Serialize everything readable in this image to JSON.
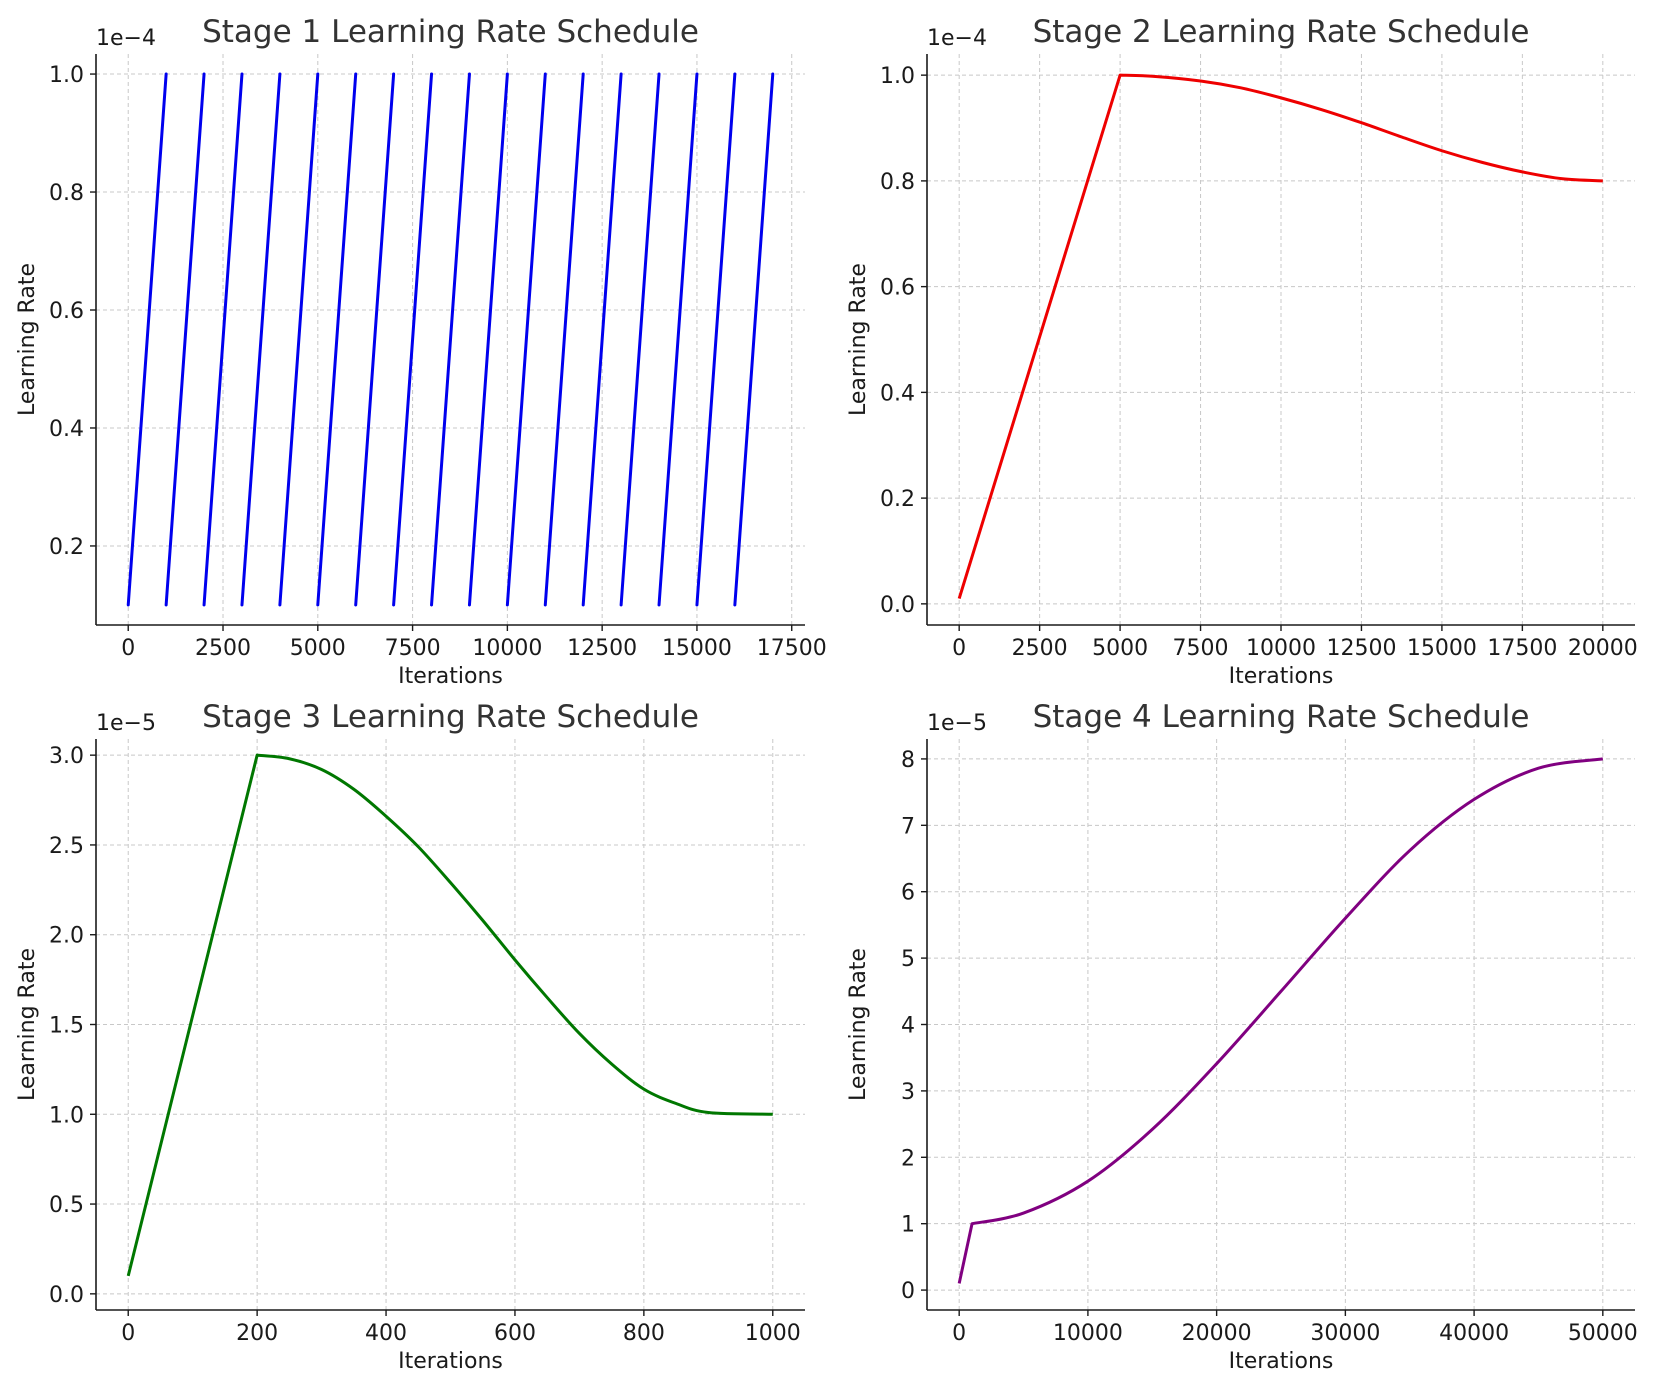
{
  "chart_data": [
    {
      "type": "line",
      "title": "Stage 1 Learning Rate Schedule",
      "xlabel": "Iterations",
      "ylabel": "Learning Rate",
      "scale_label": "1e−4",
      "color": "#0000ee",
      "grid": true,
      "xlim": [
        -850,
        17850
      ],
      "ylim": [
        0.066,
        1.034
      ],
      "xticks": [
        0,
        2500,
        5000,
        7500,
        10000,
        12500,
        15000,
        17500
      ],
      "xtick_labels": [
        "0",
        "2500",
        "5000",
        "7500",
        "10000",
        "12500",
        "15000",
        "17500"
      ],
      "yticks": [
        0.2,
        0.4,
        0.6,
        0.8,
        1.0
      ],
      "ytick_labels": [
        "0.2",
        "0.4",
        "0.6",
        "0.8",
        "1.0"
      ],
      "series": [
        {
          "segments": [
            [
              [
                0,
                0.1
              ],
              [
                1000,
                1.0
              ]
            ],
            [
              [
                1000,
                0.1
              ],
              [
                2000,
                1.0
              ]
            ],
            [
              [
                2000,
                0.1
              ],
              [
                3000,
                1.0
              ]
            ],
            [
              [
                3000,
                0.1
              ],
              [
                4000,
                1.0
              ]
            ],
            [
              [
                4000,
                0.1
              ],
              [
                5000,
                1.0
              ]
            ],
            [
              [
                5000,
                0.1
              ],
              [
                6000,
                1.0
              ]
            ],
            [
              [
                6000,
                0.1
              ],
              [
                7000,
                1.0
              ]
            ],
            [
              [
                7000,
                0.1
              ],
              [
                8000,
                1.0
              ]
            ],
            [
              [
                8000,
                0.1
              ],
              [
                9000,
                1.0
              ]
            ],
            [
              [
                9000,
                0.1
              ],
              [
                10000,
                1.0
              ]
            ],
            [
              [
                10000,
                0.1
              ],
              [
                11000,
                1.0
              ]
            ],
            [
              [
                11000,
                0.1
              ],
              [
                12000,
                1.0
              ]
            ],
            [
              [
                12000,
                0.1
              ],
              [
                13000,
                1.0
              ]
            ],
            [
              [
                13000,
                0.1
              ],
              [
                14000,
                1.0
              ]
            ],
            [
              [
                14000,
                0.1
              ],
              [
                15000,
                1.0
              ]
            ],
            [
              [
                15000,
                0.1
              ],
              [
                16000,
                1.0
              ]
            ],
            [
              [
                16000,
                0.1
              ],
              [
                17000,
                1.0
              ]
            ]
          ]
        }
      ]
    },
    {
      "type": "line",
      "title": "Stage 2 Learning Rate Schedule",
      "xlabel": "Iterations",
      "ylabel": "Learning Rate",
      "scale_label": "1e−4",
      "color": "#ee0000",
      "grid": true,
      "xlim": [
        -1000,
        21000
      ],
      "ylim": [
        -0.04,
        1.04
      ],
      "xticks": [
        0,
        2500,
        5000,
        7500,
        10000,
        12500,
        15000,
        17500,
        20000
      ],
      "xtick_labels": [
        "0",
        "2500",
        "5000",
        "7500",
        "10000",
        "12500",
        "15000",
        "17500",
        "20000"
      ],
      "yticks": [
        0.0,
        0.2,
        0.4,
        0.6,
        0.8,
        1.0
      ],
      "ytick_labels": [
        "0.0",
        "0.2",
        "0.4",
        "0.6",
        "0.8",
        "1.0"
      ],
      "series": [
        {
          "points": [
            [
              0,
              0.01
            ],
            [
              5000,
              1.0
            ],
            [
              6000,
              0.998
            ],
            [
              7500,
              0.989
            ],
            [
              8750,
              0.976
            ],
            [
              10000,
              0.957
            ],
            [
              11250,
              0.935
            ],
            [
              12500,
              0.91
            ],
            [
              13750,
              0.883
            ],
            [
              15000,
              0.857
            ],
            [
              16250,
              0.835
            ],
            [
              17500,
              0.817
            ],
            [
              18750,
              0.804
            ],
            [
              20000,
              0.8
            ]
          ]
        }
      ]
    },
    {
      "type": "line",
      "title": "Stage 3 Learning Rate Schedule",
      "xlabel": "Iterations",
      "ylabel": "Learning Rate",
      "scale_label": "1e−5",
      "color": "#007700",
      "grid": true,
      "xlim": [
        -50,
        1050
      ],
      "ylim": [
        -0.09,
        3.09
      ],
      "xticks": [
        0,
        200,
        400,
        600,
        800,
        1000
      ],
      "xtick_labels": [
        "0",
        "200",
        "400",
        "600",
        "800",
        "1000"
      ],
      "yticks": [
        0.0,
        0.5,
        1.0,
        1.5,
        2.0,
        2.5,
        3.0
      ],
      "ytick_labels": [
        "0.0",
        "0.5",
        "1.0",
        "1.5",
        "2.0",
        "2.5",
        "3.0"
      ],
      "series": [
        {
          "points": [
            [
              0,
              0.1
            ],
            [
              200,
              3.0
            ],
            [
              250,
              2.98
            ],
            [
              300,
              2.92
            ],
            [
              350,
              2.81
            ],
            [
              400,
              2.66
            ],
            [
              450,
              2.49
            ],
            [
              500,
              2.29
            ],
            [
              550,
              2.08
            ],
            [
              600,
              1.86
            ],
            [
              650,
              1.65
            ],
            [
              700,
              1.45
            ],
            [
              750,
              1.28
            ],
            [
              800,
              1.14
            ],
            [
              850,
              1.06
            ],
            [
              900,
              1.01
            ],
            [
              1000,
              1.0
            ]
          ]
        }
      ]
    },
    {
      "type": "line",
      "title": "Stage 4 Learning Rate Schedule",
      "xlabel": "Iterations",
      "ylabel": "Learning Rate",
      "scale_label": "1e−5",
      "color": "#800080",
      "grid": true,
      "xlim": [
        -2500,
        52500
      ],
      "ylim": [
        -0.3,
        8.3
      ],
      "xticks": [
        0,
        10000,
        20000,
        30000,
        40000,
        50000
      ],
      "xtick_labels": [
        "0",
        "10000",
        "20000",
        "30000",
        "40000",
        "50000"
      ],
      "yticks": [
        0,
        1,
        2,
        3,
        4,
        5,
        6,
        7,
        8
      ],
      "ytick_labels": [
        "0",
        "1",
        "2",
        "3",
        "4",
        "5",
        "6",
        "7",
        "8"
      ],
      "series": [
        {
          "points": [
            [
              0,
              0.1
            ],
            [
              1000,
              1.0
            ],
            [
              5000,
              1.16
            ],
            [
              10000,
              1.64
            ],
            [
              15000,
              2.42
            ],
            [
              20000,
              3.41
            ],
            [
              25000,
              4.5
            ],
            [
              30000,
              5.6
            ],
            [
              35000,
              6.62
            ],
            [
              40000,
              7.39
            ],
            [
              45000,
              7.86
            ],
            [
              50000,
              8.0
            ]
          ]
        }
      ]
    }
  ]
}
